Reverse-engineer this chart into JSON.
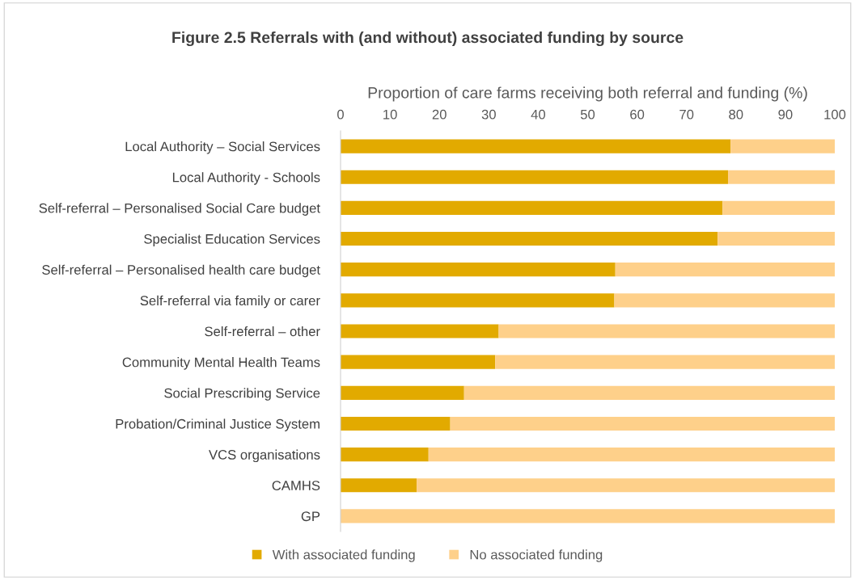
{
  "chart_data": {
    "type": "bar",
    "orientation": "horizontal",
    "stacked": true,
    "title": "Figure 2.5 Referrals with (and without) associated funding by source",
    "xlabel": "Proportion of care farms receiving both referral and funding (%)",
    "categories": [
      "Local Authority – Social Services",
      "Local Authority - Schools",
      "Self-referral – Personalised Social Care budget",
      "Specialist Education Services",
      "Self-referral – Personalised health care budget",
      "Self-referral via family or carer",
      "Self-referral – other",
      "Community Mental Health Teams",
      "Social Prescribing Service",
      "Probation/Criminal Justice System",
      "VCS organisations",
      "CAMHS",
      "GP"
    ],
    "series": [
      {
        "name": "With associated funding",
        "color": "#e2aa00",
        "values": [
          78.9,
          78.4,
          77.3,
          76.3,
          55.6,
          55.4,
          32.0,
          31.3,
          25.0,
          22.2,
          17.8,
          15.4,
          0
        ]
      },
      {
        "name": "No associated funding",
        "color": "#fed08a",
        "values": [
          21.1,
          21.6,
          22.7,
          23.7,
          44.4,
          44.6,
          68.0,
          68.7,
          75.0,
          77.8,
          82.2,
          84.6,
          100
        ]
      }
    ],
    "xlim": [
      0,
      100
    ],
    "xticks": [
      0,
      10,
      20,
      30,
      40,
      50,
      60,
      70,
      80,
      90,
      100
    ],
    "grid": false,
    "legend": "bottom"
  }
}
